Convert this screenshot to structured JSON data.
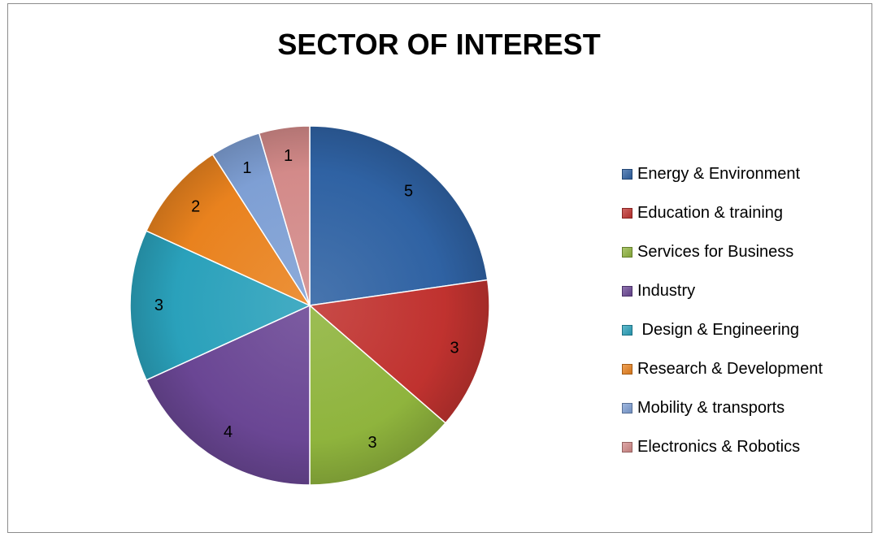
{
  "chart_data": {
    "type": "pie",
    "title": "SECTOR OF INTEREST",
    "categories": [
      "Energy & Environment",
      "Education & training",
      "Services for Business",
      "Industry",
      " Design & Engineering",
      "Research & Development",
      "Mobility & transports",
      "Electronics & Robotics"
    ],
    "values": [
      5,
      3,
      3,
      4,
      3,
      2,
      1,
      1
    ],
    "colors": [
      "#2f62a3",
      "#c0322f",
      "#8fb43d",
      "#6a4694",
      "#2aa1bb",
      "#e9821e",
      "#7e9fd4",
      "#d38a89"
    ],
    "legend_position": "right",
    "data_labels": true
  }
}
